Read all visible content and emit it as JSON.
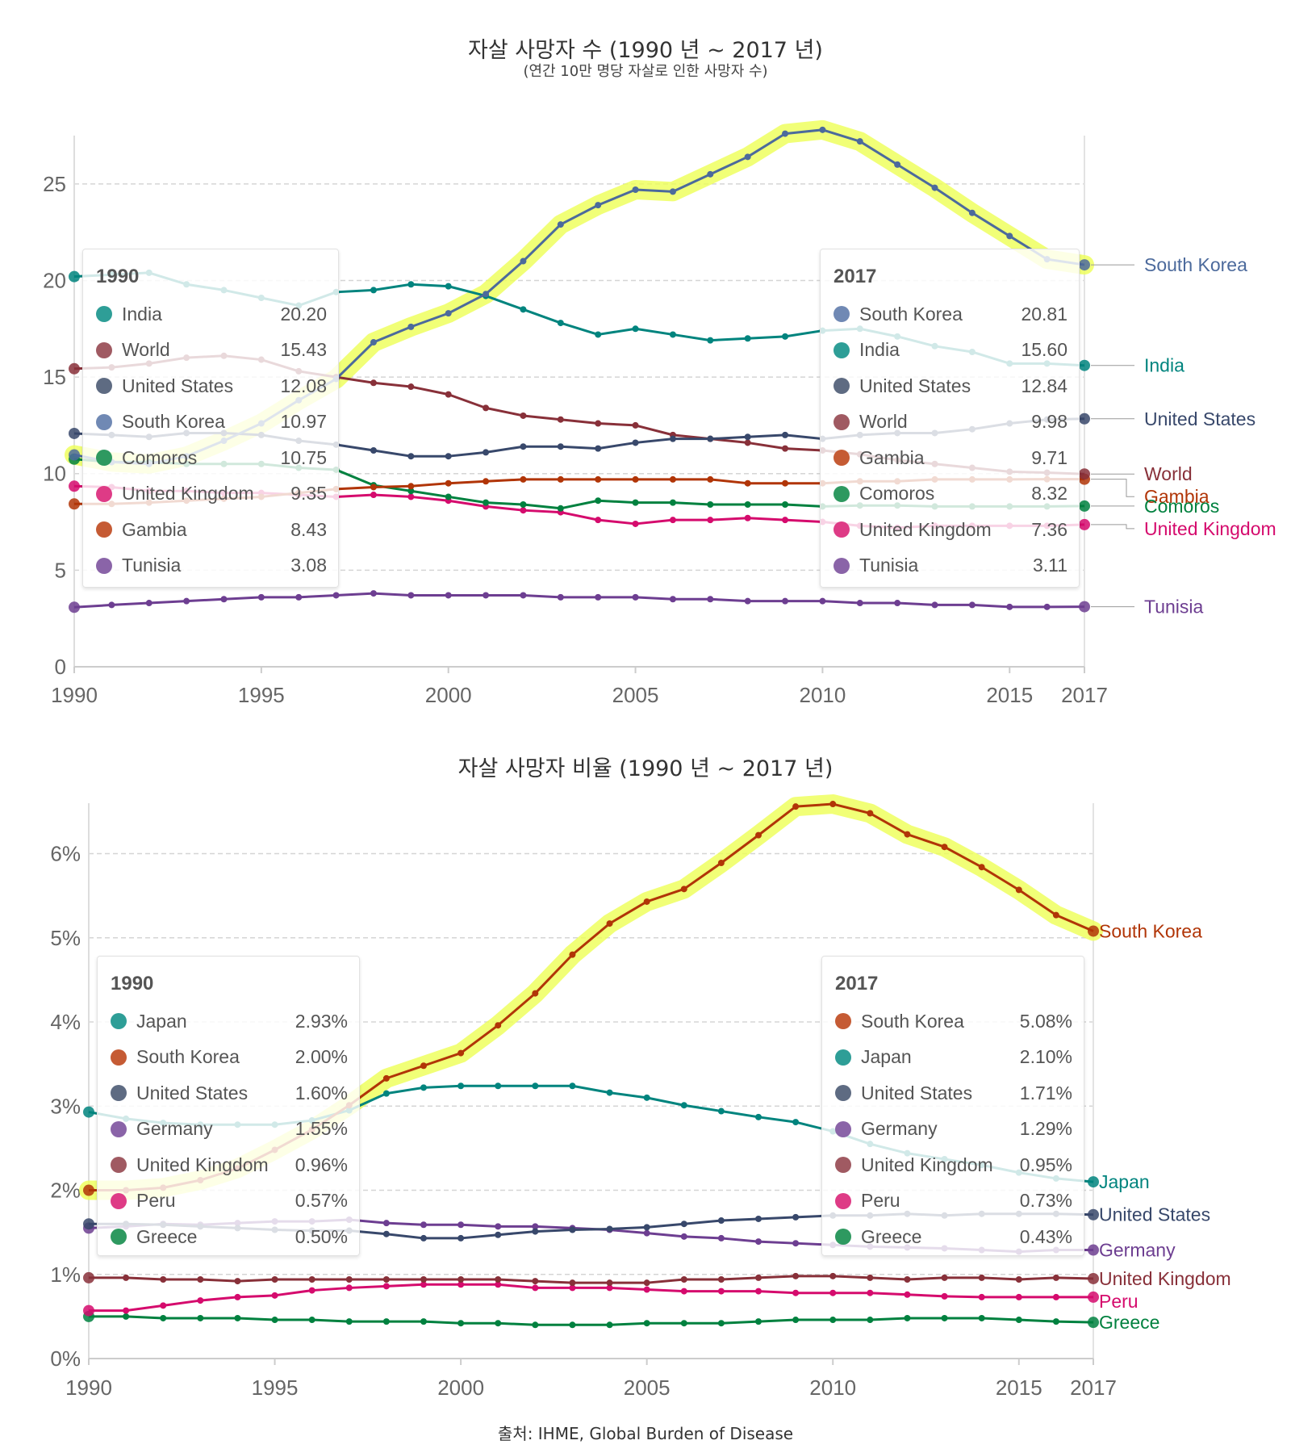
{
  "chart_data": [
    {
      "type": "line",
      "title": "자살 사망자 수 (1990 년 ~ 2017 년)",
      "subtitle": "(연간 10만 명당 자살로 인한 사망자 수)",
      "xlabel": "",
      "ylabel": "",
      "x": [
        1990,
        1991,
        1992,
        1993,
        1994,
        1995,
        1996,
        1997,
        1998,
        1999,
        2000,
        2001,
        2002,
        2003,
        2004,
        2005,
        2006,
        2007,
        2008,
        2009,
        2010,
        2011,
        2012,
        2013,
        2014,
        2015,
        2016,
        2017
      ],
      "xticks": [
        "1990",
        "1995",
        "2000",
        "2005",
        "2010",
        "2015",
        "2017"
      ],
      "xtick_values": [
        1990,
        1995,
        2000,
        2005,
        2010,
        2015,
        2017
      ],
      "yticks": [
        "0",
        "5",
        "10",
        "15",
        "20",
        "25"
      ],
      "ytick_values": [
        0,
        5,
        10,
        15,
        20,
        25
      ],
      "ylim": [
        0,
        27.5
      ],
      "grid": true,
      "highlight": "South Korea",
      "series": [
        {
          "name": "South Korea",
          "color": "#4c6a9c",
          "label_color": "#4c6a9c",
          "values": [
            10.97,
            10.6,
            10.5,
            10.9,
            11.7,
            12.6,
            13.8,
            14.9,
            16.8,
            17.6,
            18.3,
            19.3,
            21.0,
            22.9,
            23.9,
            24.7,
            24.6,
            25.5,
            26.4,
            27.6,
            27.8,
            27.2,
            26.0,
            24.8,
            23.5,
            22.3,
            21.1,
            20.81
          ]
        },
        {
          "name": "India",
          "color": "#00847e",
          "label_color": "#00847e",
          "values": [
            20.2,
            20.3,
            20.4,
            19.8,
            19.5,
            19.1,
            18.7,
            19.4,
            19.5,
            19.8,
            19.7,
            19.2,
            18.5,
            17.8,
            17.2,
            17.5,
            17.2,
            16.9,
            17.0,
            17.1,
            17.4,
            17.5,
            17.1,
            16.6,
            16.3,
            15.7,
            15.7,
            15.6
          ]
        },
        {
          "name": "United States",
          "color": "#38486b",
          "label_color": "#38486b",
          "values": [
            12.08,
            12.0,
            11.9,
            12.1,
            12.1,
            12.0,
            11.7,
            11.5,
            11.2,
            10.9,
            10.9,
            11.1,
            11.4,
            11.4,
            11.3,
            11.6,
            11.8,
            11.8,
            11.9,
            12.0,
            11.8,
            12.0,
            12.1,
            12.1,
            12.3,
            12.6,
            12.8,
            12.84
          ]
        },
        {
          "name": "World",
          "color": "#883039",
          "label_color": "#883039",
          "values": [
            15.43,
            15.5,
            15.7,
            16.0,
            16.1,
            15.9,
            15.3,
            15.0,
            14.7,
            14.5,
            14.1,
            13.4,
            13.0,
            12.8,
            12.6,
            12.5,
            12.0,
            11.8,
            11.6,
            11.3,
            11.2,
            11.0,
            10.7,
            10.5,
            10.3,
            10.1,
            10.05,
            9.98
          ]
        },
        {
          "name": "Gambia",
          "color": "#b13507",
          "label_color": "#b13507",
          "values": [
            8.43,
            8.43,
            8.5,
            8.6,
            8.7,
            8.8,
            9.0,
            9.2,
            9.3,
            9.35,
            9.5,
            9.6,
            9.7,
            9.7,
            9.7,
            9.7,
            9.7,
            9.7,
            9.5,
            9.5,
            9.5,
            9.6,
            9.6,
            9.7,
            9.7,
            9.7,
            9.71,
            9.71
          ]
        },
        {
          "name": "Comoros",
          "color": "#00813f",
          "label_color": "#00813f",
          "values": [
            10.75,
            10.6,
            10.6,
            10.5,
            10.5,
            10.5,
            10.3,
            10.2,
            9.4,
            9.1,
            8.8,
            8.5,
            8.4,
            8.2,
            8.6,
            8.5,
            8.5,
            8.4,
            8.4,
            8.4,
            8.3,
            8.35,
            8.35,
            8.3,
            8.3,
            8.3,
            8.3,
            8.32
          ]
        },
        {
          "name": "United Kingdom",
          "color": "#d50b6d",
          "label_color": "#d50b6d",
          "values": [
            9.35,
            9.3,
            9.1,
            9.1,
            9.0,
            9.0,
            8.9,
            8.8,
            8.9,
            8.8,
            8.6,
            8.3,
            8.1,
            8.0,
            7.6,
            7.4,
            7.6,
            7.6,
            7.7,
            7.6,
            7.5,
            7.3,
            7.2,
            7.3,
            7.3,
            7.3,
            7.3,
            7.36
          ]
        },
        {
          "name": "Tunisia",
          "color": "#6d3e91",
          "label_color": "#6d3e91",
          "values": [
            3.08,
            3.2,
            3.3,
            3.4,
            3.5,
            3.6,
            3.6,
            3.7,
            3.8,
            3.7,
            3.7,
            3.7,
            3.7,
            3.6,
            3.6,
            3.6,
            3.5,
            3.5,
            3.4,
            3.4,
            3.4,
            3.3,
            3.3,
            3.2,
            3.2,
            3.1,
            3.1,
            3.11
          ]
        }
      ],
      "legend_start": {
        "year": "1990",
        "rows": [
          {
            "name": "India",
            "value": "20.20",
            "color": "#2e9e97"
          },
          {
            "name": "World",
            "value": "15.43",
            "color": "#a05a62"
          },
          {
            "name": "United States",
            "value": "12.08",
            "color": "#5e6b82"
          },
          {
            "name": "South Korea",
            "value": "10.97",
            "color": "#7089b4"
          },
          {
            "name": "Comoros",
            "value": "10.75",
            "color": "#2e9960"
          },
          {
            "name": "United Kingdom",
            "value": "9.35",
            "color": "#de3b86"
          },
          {
            "name": "Gambia",
            "value": "8.43",
            "color": "#c55b34"
          },
          {
            "name": "Tunisia",
            "value": "3.08",
            "color": "#8a64a8"
          }
        ]
      },
      "legend_end": {
        "year": "2017",
        "rows": [
          {
            "name": "South Korea",
            "value": "20.81",
            "color": "#7089b4"
          },
          {
            "name": "India",
            "value": "15.60",
            "color": "#2e9e97"
          },
          {
            "name": "United States",
            "value": "12.84",
            "color": "#5e6b82"
          },
          {
            "name": "World",
            "value": "9.98",
            "color": "#a05a62"
          },
          {
            "name": "Gambia",
            "value": "9.71",
            "color": "#c55b34"
          },
          {
            "name": "Comoros",
            "value": "8.32",
            "color": "#2e9960"
          },
          {
            "name": "United Kingdom",
            "value": "7.36",
            "color": "#de3b86"
          },
          {
            "name": "Tunisia",
            "value": "3.11",
            "color": "#8a64a8"
          }
        ]
      },
      "end_labels": [
        "South Korea",
        "India",
        "United States",
        "World",
        "Gambia",
        "Comoros",
        "United Kingdom",
        "Tunisia"
      ]
    },
    {
      "type": "line",
      "title": "자살 사망자 비율 (1990 년 ~ 2017 년)",
      "xlabel": "",
      "ylabel": "",
      "x": [
        1990,
        1991,
        1992,
        1993,
        1994,
        1995,
        1996,
        1997,
        1998,
        1999,
        2000,
        2001,
        2002,
        2003,
        2004,
        2005,
        2006,
        2007,
        2008,
        2009,
        2010,
        2011,
        2012,
        2013,
        2014,
        2015,
        2016,
        2017
      ],
      "xticks": [
        "1990",
        "1995",
        "2000",
        "2005",
        "2010",
        "2015",
        "2017"
      ],
      "xtick_values": [
        1990,
        1995,
        2000,
        2005,
        2010,
        2015,
        2017
      ],
      "yticks": [
        "0%",
        "1%",
        "2%",
        "3%",
        "4%",
        "5%",
        "6%"
      ],
      "ytick_values": [
        0,
        1,
        2,
        3,
        4,
        5,
        6
      ],
      "ylim": [
        0,
        6.6
      ],
      "grid": true,
      "highlight": "South Korea",
      "series": [
        {
          "name": "South Korea",
          "color": "#b13507",
          "label_color": "#b13507",
          "values": [
            2.0,
            2.0,
            2.03,
            2.12,
            2.26,
            2.48,
            2.72,
            3.01,
            3.33,
            3.48,
            3.63,
            3.96,
            4.34,
            4.8,
            5.17,
            5.43,
            5.58,
            5.89,
            6.22,
            6.56,
            6.59,
            6.48,
            6.23,
            6.08,
            5.84,
            5.57,
            5.27,
            5.08
          ]
        },
        {
          "name": "Japan",
          "color": "#00847e",
          "label_color": "#00847e",
          "values": [
            2.93,
            2.85,
            2.8,
            2.78,
            2.78,
            2.78,
            2.83,
            2.95,
            3.15,
            3.22,
            3.24,
            3.24,
            3.24,
            3.24,
            3.16,
            3.1,
            3.01,
            2.94,
            2.87,
            2.81,
            2.7,
            2.55,
            2.44,
            2.37,
            2.3,
            2.21,
            2.14,
            2.1
          ]
        },
        {
          "name": "United States",
          "color": "#38486b",
          "label_color": "#38486b",
          "values": [
            1.6,
            1.6,
            1.59,
            1.57,
            1.55,
            1.53,
            1.52,
            1.52,
            1.48,
            1.43,
            1.43,
            1.47,
            1.51,
            1.53,
            1.54,
            1.56,
            1.6,
            1.64,
            1.66,
            1.68,
            1.7,
            1.7,
            1.72,
            1.7,
            1.72,
            1.72,
            1.72,
            1.71
          ]
        },
        {
          "name": "Germany",
          "color": "#6d3e91",
          "label_color": "#6d3e91",
          "values": [
            1.55,
            1.57,
            1.6,
            1.59,
            1.61,
            1.63,
            1.63,
            1.65,
            1.61,
            1.59,
            1.59,
            1.57,
            1.57,
            1.55,
            1.53,
            1.49,
            1.45,
            1.43,
            1.39,
            1.37,
            1.35,
            1.33,
            1.32,
            1.31,
            1.29,
            1.27,
            1.29,
            1.29
          ]
        },
        {
          "name": "United Kingdom",
          "color": "#883039",
          "label_color": "#883039",
          "values": [
            0.96,
            0.96,
            0.94,
            0.94,
            0.92,
            0.94,
            0.94,
            0.94,
            0.94,
            0.94,
            0.94,
            0.94,
            0.92,
            0.9,
            0.9,
            0.9,
            0.94,
            0.94,
            0.96,
            0.98,
            0.98,
            0.96,
            0.94,
            0.96,
            0.96,
            0.94,
            0.96,
            0.95
          ]
        },
        {
          "name": "Peru",
          "color": "#d50b6d",
          "label_color": "#d50b6d",
          "values": [
            0.57,
            0.57,
            0.63,
            0.69,
            0.73,
            0.75,
            0.81,
            0.84,
            0.86,
            0.88,
            0.88,
            0.88,
            0.84,
            0.84,
            0.84,
            0.82,
            0.8,
            0.8,
            0.8,
            0.78,
            0.78,
            0.78,
            0.76,
            0.74,
            0.73,
            0.73,
            0.73,
            0.73
          ]
        },
        {
          "name": "Greece",
          "color": "#00813f",
          "label_color": "#00813f",
          "values": [
            0.5,
            0.5,
            0.48,
            0.48,
            0.48,
            0.46,
            0.46,
            0.44,
            0.44,
            0.44,
            0.42,
            0.42,
            0.4,
            0.4,
            0.4,
            0.42,
            0.42,
            0.42,
            0.44,
            0.46,
            0.46,
            0.46,
            0.48,
            0.48,
            0.48,
            0.46,
            0.44,
            0.43
          ]
        }
      ],
      "legend_start": {
        "year": "1990",
        "rows": [
          {
            "name": "Japan",
            "value": "2.93%",
            "color": "#2e9e97"
          },
          {
            "name": "South Korea",
            "value": "2.00%",
            "color": "#c55b34"
          },
          {
            "name": "United States",
            "value": "1.60%",
            "color": "#5e6b82"
          },
          {
            "name": "Germany",
            "value": "1.55%",
            "color": "#8a64a8"
          },
          {
            "name": "United Kingdom",
            "value": "0.96%",
            "color": "#a05a62"
          },
          {
            "name": "Peru",
            "value": "0.57%",
            "color": "#de3b86"
          },
          {
            "name": "Greece",
            "value": "0.50%",
            "color": "#2e9960"
          }
        ]
      },
      "legend_end": {
        "year": "2017",
        "rows": [
          {
            "name": "South Korea",
            "value": "5.08%",
            "color": "#c55b34"
          },
          {
            "name": "Japan",
            "value": "2.10%",
            "color": "#2e9e97"
          },
          {
            "name": "United States",
            "value": "1.71%",
            "color": "#5e6b82"
          },
          {
            "name": "Germany",
            "value": "1.29%",
            "color": "#8a64a8"
          },
          {
            "name": "United Kingdom",
            "value": "0.95%",
            "color": "#a05a62"
          },
          {
            "name": "Peru",
            "value": "0.73%",
            "color": "#de3b86"
          },
          {
            "name": "Greece",
            "value": "0.43%",
            "color": "#2e9960"
          }
        ]
      },
      "end_labels": [
        "South Korea",
        "Japan",
        "United States",
        "Germany",
        "United Kingdom",
        "Peru",
        "Greece"
      ]
    }
  ],
  "highlight_color": "#eeff55",
  "source": "출처: IHME, Global Burden of Disease"
}
